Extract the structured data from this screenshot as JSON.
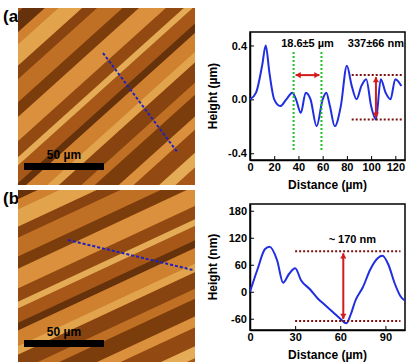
{
  "chart_data": [
    {
      "type": "line",
      "panel_label": "(a)",
      "scale_bar_label": "50 µm",
      "x_label": "Distance (µm)",
      "y_label": "Height (µm)",
      "color": "#1f2ee0",
      "x": [
        0,
        5,
        10,
        13,
        16,
        20,
        25,
        30,
        35,
        38,
        42,
        46,
        50,
        55,
        60,
        63,
        66,
        70,
        75,
        80,
        84,
        88,
        92,
        96,
        100,
        104,
        108,
        112,
        116,
        120,
        125
      ],
      "values": [
        0.0,
        0.05,
        0.25,
        0.4,
        0.2,
        0.0,
        -0.05,
        0.0,
        0.05,
        0.0,
        -0.1,
        0.05,
        0.0,
        -0.2,
        0.0,
        0.05,
        -0.05,
        -0.2,
        -0.05,
        0.25,
        0.1,
        0.0,
        0.1,
        0.15,
        -0.05,
        -0.15,
        0.15,
        0.05,
        0.0,
        0.15,
        0.1
      ],
      "xlim": [
        0,
        128
      ],
      "xticks": [
        0,
        20,
        40,
        60,
        80,
        100,
        120
      ],
      "ylim": [
        -0.45,
        0.5
      ],
      "yticks": [
        -0.4,
        {
          "value": 0,
          "label": "0.0"
        },
        0.4
      ],
      "annotations": [
        "18.6±5 µm",
        "337±66 nm"
      ],
      "vlines": [
        36,
        59
      ],
      "hlines": [
        0.18,
        -0.15
      ]
    },
    {
      "type": "line",
      "panel_label": "(b)",
      "scale_bar_label": "50 µm",
      "x_label": "Distance (µm)",
      "y_label": "Height (nm)",
      "color": "#1f2ee0",
      "x": [
        0,
        5,
        10,
        13,
        18,
        22,
        26,
        30,
        34,
        40,
        45,
        50,
        55,
        60,
        64,
        67,
        70,
        75,
        80,
        85,
        88,
        92,
        96,
        100,
        103
      ],
      "values": [
        0,
        50,
        95,
        100,
        70,
        20,
        40,
        52,
        25,
        5,
        -15,
        -30,
        -45,
        -60,
        -70,
        -50,
        -20,
        10,
        50,
        75,
        80,
        60,
        20,
        -10,
        -20
      ],
      "xlim": [
        0,
        103
      ],
      "xticks": [
        0,
        30,
        60,
        90
      ],
      "ylim": [
        -85,
        195
      ],
      "yticks": [
        -60,
        0,
        60,
        120,
        180
      ],
      "annotations": [
        "~ 170 nm"
      ],
      "hlines": [
        90,
        -65
      ]
    }
  ]
}
